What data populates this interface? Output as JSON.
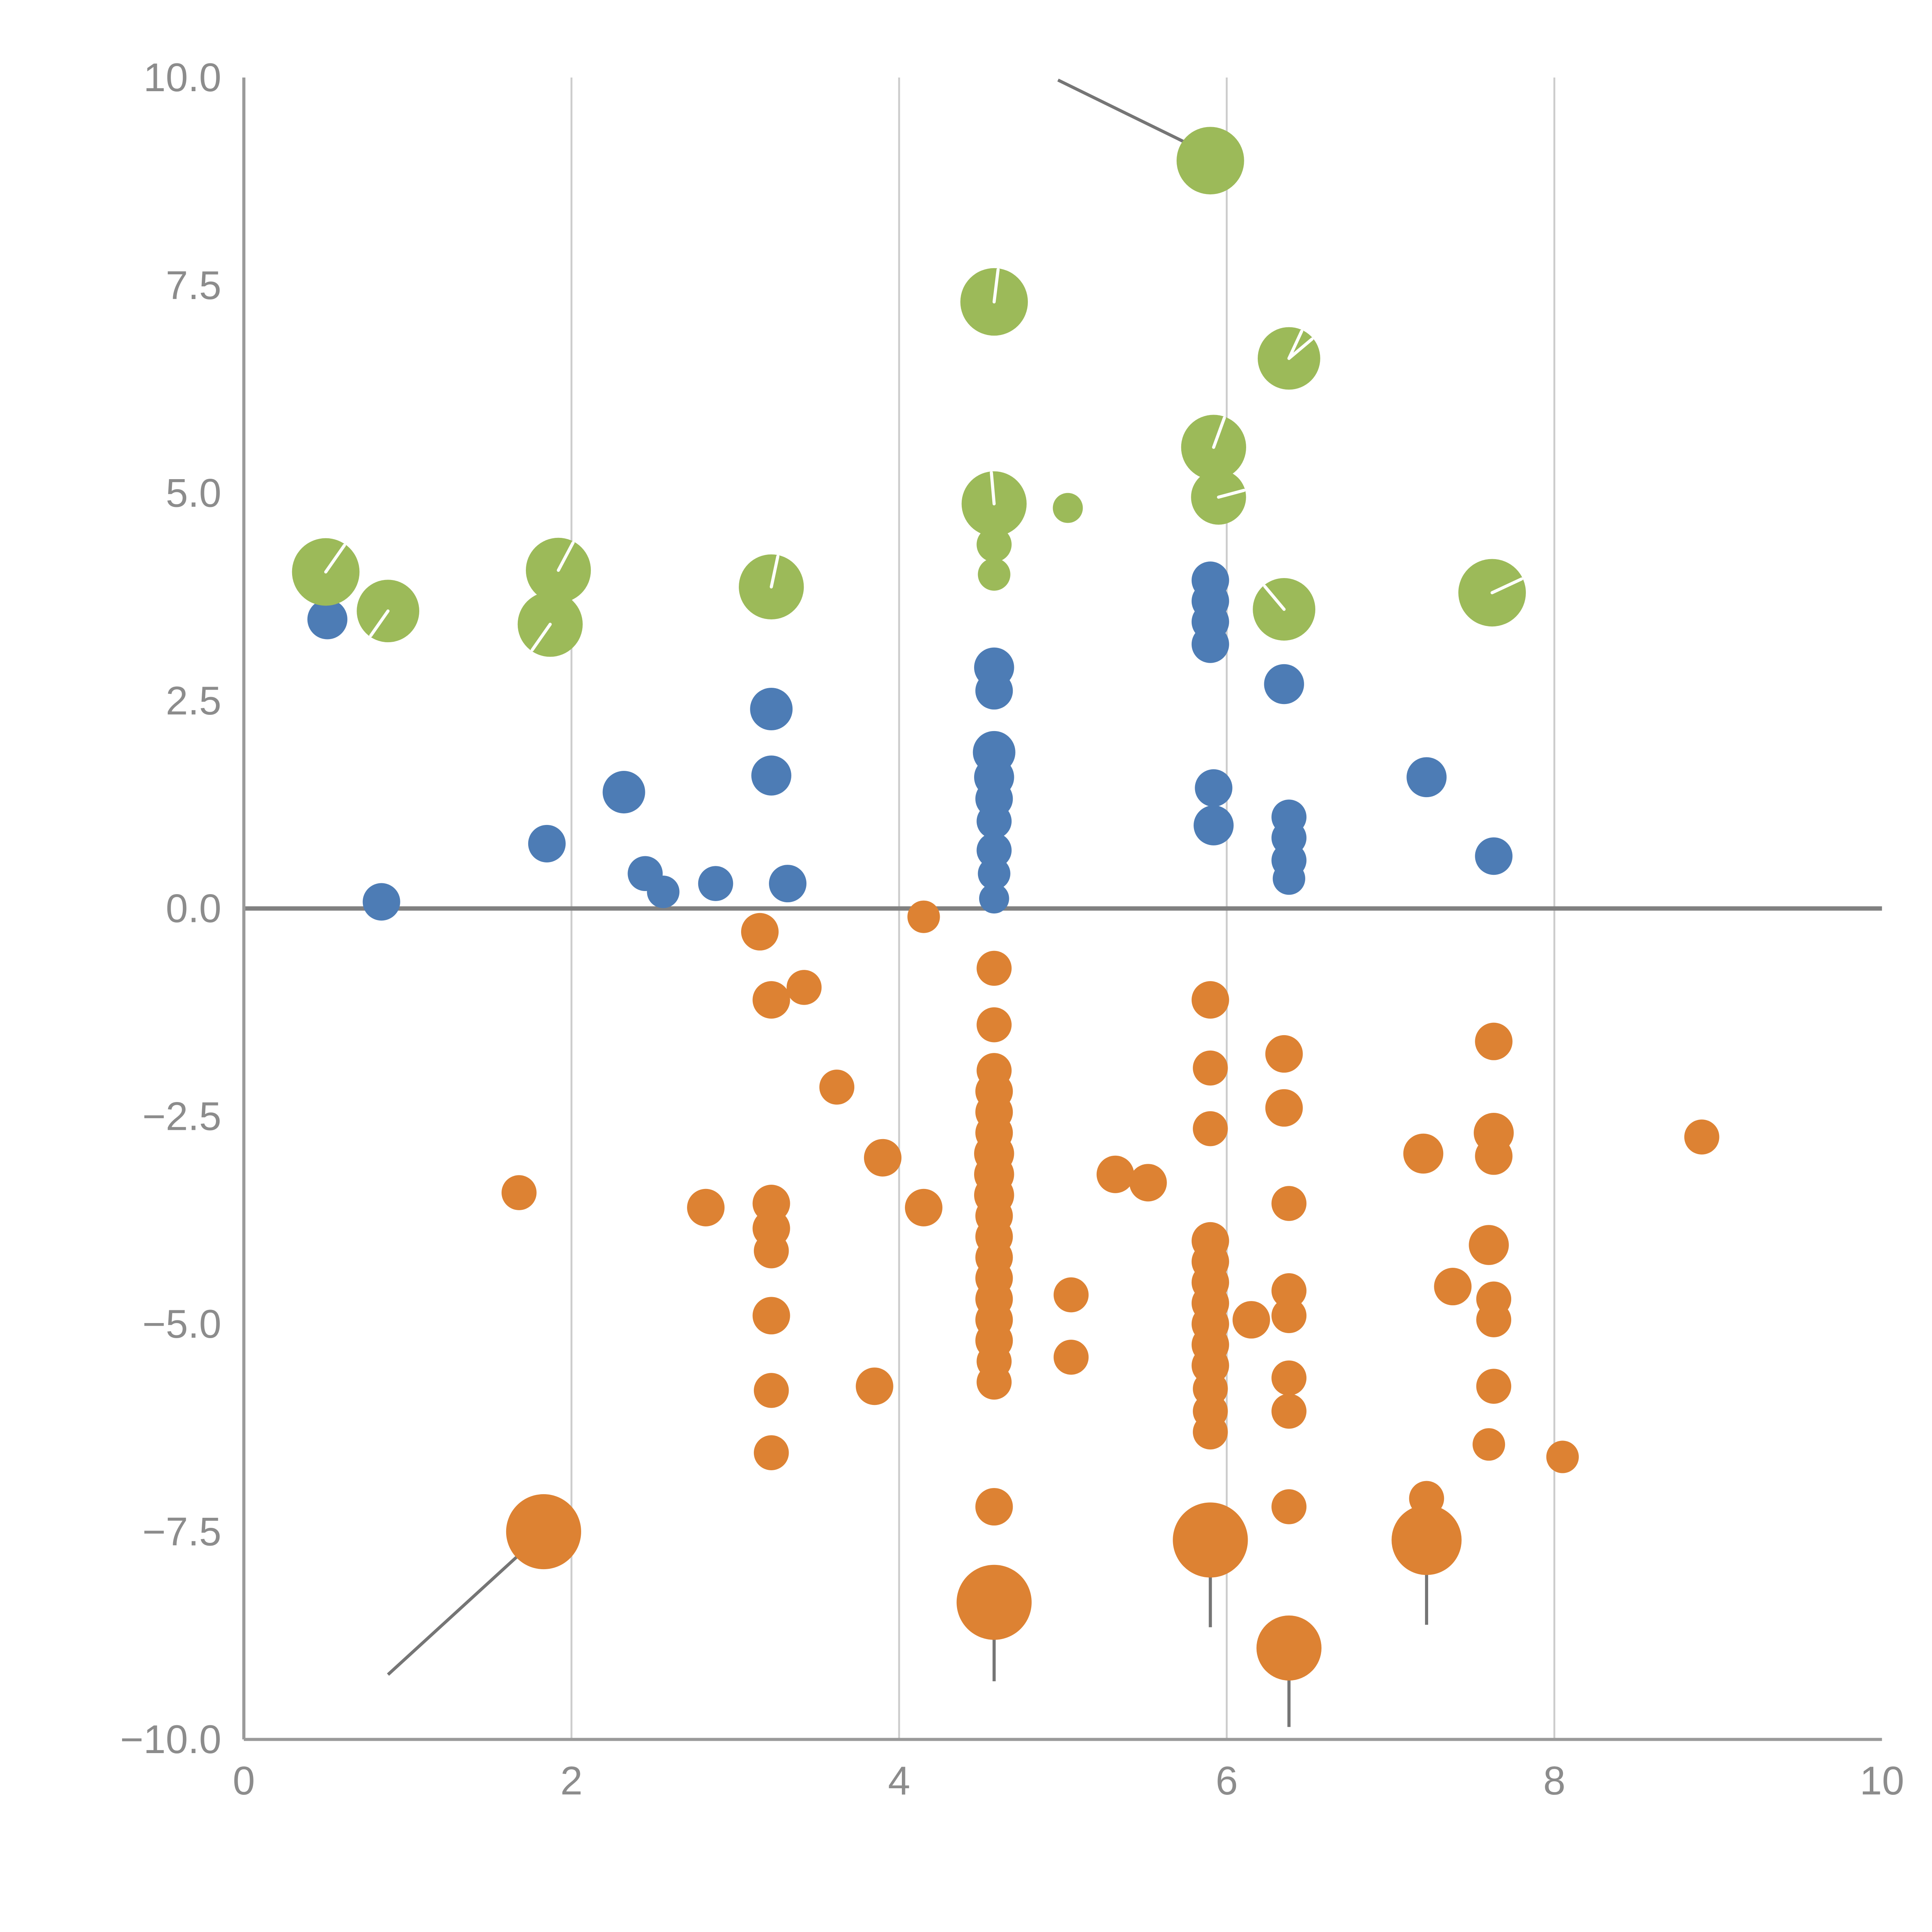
{
  "figure": {
    "background": "#ffffff",
    "axis_color": "#9a9a9a",
    "grid_color": "#cccccc",
    "zero_line_color": "#808080",
    "tick_label_color": "#8c8c8c",
    "annotation_color": "#757575",
    "needle_color": "#ffffff"
  },
  "chart_data": {
    "type": "scatter",
    "title": "",
    "xlabel": "",
    "ylabel": "",
    "xlim": [
      0,
      10
    ],
    "ylim": [
      -10,
      10
    ],
    "grid": "vertical-only",
    "legend_position": "none",
    "x_ticks": [
      {
        "value": 0,
        "label": "0"
      },
      {
        "value": 2,
        "label": "2"
      },
      {
        "value": 4,
        "label": "4"
      },
      {
        "value": 6,
        "label": "6"
      },
      {
        "value": 8,
        "label": "8"
      },
      {
        "value": 10,
        "label": "10"
      }
    ],
    "y_ticks": [
      {
        "value": 10.0,
        "label": "10.0"
      },
      {
        "value": 7.5,
        "label": "7.5"
      },
      {
        "value": 5.0,
        "label": "5.0"
      },
      {
        "value": 2.5,
        "label": "2.5"
      },
      {
        "value": 0.0,
        "label": "0.0"
      },
      {
        "value": -2.5,
        "label": "−2.5"
      },
      {
        "value": -5.0,
        "label": "−5.0"
      },
      {
        "value": -7.5,
        "label": "−7.5"
      },
      {
        "value": -10.0,
        "label": "−10.0"
      }
    ],
    "gridlines_x": [
      2,
      4,
      6,
      8
    ],
    "zero_line_y": 0,
    "series": [
      {
        "name": "blue",
        "color": "#4d7cb5",
        "points": [
          [
            0.51,
            3.48,
            16
          ],
          [
            0.84,
            0.08,
            15
          ],
          [
            1.85,
            0.78,
            15
          ],
          [
            2.32,
            1.4,
            17
          ],
          [
            2.45,
            0.42,
            14
          ],
          [
            2.56,
            0.2,
            13
          ],
          [
            2.88,
            0.3,
            14
          ],
          [
            3.22,
            2.4,
            17
          ],
          [
            3.22,
            1.6,
            16
          ],
          [
            3.32,
            0.3,
            15
          ],
          [
            4.58,
            2.9,
            16
          ],
          [
            4.58,
            2.62,
            15
          ],
          [
            4.58,
            1.88,
            17
          ],
          [
            4.58,
            1.58,
            16
          ],
          [
            4.58,
            1.32,
            15
          ],
          [
            4.58,
            1.05,
            14
          ],
          [
            4.58,
            0.7,
            14
          ],
          [
            4.58,
            0.42,
            13
          ],
          [
            4.58,
            0.12,
            12
          ],
          [
            5.9,
            3.95,
            15
          ],
          [
            5.9,
            3.7,
            15
          ],
          [
            5.9,
            3.45,
            15
          ],
          [
            5.9,
            3.18,
            15
          ],
          [
            5.92,
            1.45,
            15
          ],
          [
            5.92,
            1.0,
            16
          ],
          [
            6.35,
            2.7,
            16
          ],
          [
            6.38,
            1.1,
            14
          ],
          [
            6.38,
            0.85,
            14
          ],
          [
            6.38,
            0.58,
            14
          ],
          [
            6.38,
            0.36,
            13
          ],
          [
            7.22,
            1.58,
            16
          ],
          [
            7.63,
            0.63,
            15
          ]
        ]
      },
      {
        "name": "orange",
        "color": "#dd8233",
        "points": [
          [
            4.15,
            -0.1,
            13
          ],
          [
            3.15,
            -0.28,
            15
          ],
          [
            3.22,
            -1.1,
            15
          ],
          [
            3.42,
            -0.95,
            14
          ],
          [
            4.58,
            -0.72,
            14
          ],
          [
            4.58,
            -1.4,
            14
          ],
          [
            3.62,
            -2.15,
            14
          ],
          [
            3.9,
            -3.0,
            15
          ],
          [
            4.15,
            -3.6,
            15
          ],
          [
            1.68,
            -3.42,
            14
          ],
          [
            2.82,
            -3.6,
            15
          ],
          [
            3.22,
            -3.55,
            15
          ],
          [
            3.22,
            -3.85,
            15
          ],
          [
            3.22,
            -4.12,
            14
          ],
          [
            3.22,
            -4.9,
            15
          ],
          [
            3.22,
            -5.8,
            14
          ],
          [
            3.22,
            -6.55,
            14
          ],
          [
            3.85,
            -5.75,
            15
          ],
          [
            1.83,
            -7.5,
            30
          ],
          [
            4.58,
            -1.95,
            14
          ],
          [
            4.58,
            -2.2,
            15
          ],
          [
            4.58,
            -2.45,
            15
          ],
          [
            4.58,
            -2.7,
            15
          ],
          [
            4.58,
            -2.95,
            16
          ],
          [
            4.58,
            -3.2,
            16
          ],
          [
            4.58,
            -3.45,
            16
          ],
          [
            4.58,
            -3.7,
            15
          ],
          [
            4.58,
            -3.95,
            15
          ],
          [
            4.58,
            -4.2,
            15
          ],
          [
            4.58,
            -4.45,
            15
          ],
          [
            4.58,
            -4.7,
            15
          ],
          [
            4.58,
            -4.95,
            15
          ],
          [
            4.58,
            -5.2,
            15
          ],
          [
            4.58,
            -5.45,
            14
          ],
          [
            4.58,
            -5.7,
            14
          ],
          [
            4.58,
            -7.2,
            15
          ],
          [
            4.58,
            -8.35,
            30
          ],
          [
            5.05,
            -4.65,
            14
          ],
          [
            5.05,
            -5.4,
            14
          ],
          [
            5.32,
            -3.2,
            15
          ],
          [
            5.52,
            -3.3,
            15
          ],
          [
            5.9,
            -1.1,
            15
          ],
          [
            5.9,
            -1.92,
            14
          ],
          [
            5.9,
            -2.65,
            14
          ],
          [
            5.9,
            -4.0,
            15
          ],
          [
            5.9,
            -4.25,
            15
          ],
          [
            5.9,
            -4.5,
            15
          ],
          [
            5.9,
            -4.75,
            15
          ],
          [
            5.9,
            -5.0,
            15
          ],
          [
            5.9,
            -5.25,
            15
          ],
          [
            5.9,
            -5.5,
            15
          ],
          [
            5.9,
            -5.78,
            14
          ],
          [
            5.9,
            -6.05,
            14
          ],
          [
            5.9,
            -6.3,
            14
          ],
          [
            5.9,
            -7.6,
            30
          ],
          [
            6.15,
            -4.95,
            15
          ],
          [
            6.35,
            -1.75,
            15
          ],
          [
            6.35,
            -2.4,
            15
          ],
          [
            6.38,
            -3.55,
            14
          ],
          [
            6.38,
            -4.6,
            14
          ],
          [
            6.38,
            -4.9,
            14
          ],
          [
            6.38,
            -5.65,
            14
          ],
          [
            6.38,
            -6.05,
            14
          ],
          [
            6.38,
            -7.2,
            14
          ],
          [
            6.38,
            -8.9,
            26
          ],
          [
            7.2,
            -2.95,
            16
          ],
          [
            7.38,
            -4.55,
            15
          ],
          [
            7.22,
            -7.1,
            14
          ],
          [
            7.22,
            -7.6,
            28
          ],
          [
            7.63,
            -1.6,
            15
          ],
          [
            7.63,
            -2.7,
            16
          ],
          [
            7.63,
            -2.98,
            15
          ],
          [
            7.6,
            -4.05,
            16
          ],
          [
            7.63,
            -4.7,
            14
          ],
          [
            7.63,
            -4.95,
            14
          ],
          [
            7.63,
            -5.75,
            14
          ],
          [
            7.6,
            -6.45,
            13
          ],
          [
            8.05,
            -6.6,
            13
          ],
          [
            8.9,
            -2.75,
            14
          ]
        ]
      },
      {
        "name": "green",
        "color": "#9cba59",
        "points": [
          [
            0.5,
            4.05,
            27
          ],
          [
            0.88,
            3.58,
            25
          ],
          [
            1.92,
            4.07,
            26
          ],
          [
            1.87,
            3.42,
            26
          ],
          [
            3.22,
            3.87,
            26
          ],
          [
            4.58,
            7.3,
            27
          ],
          [
            4.58,
            4.87,
            26
          ],
          [
            4.58,
            4.38,
            14
          ],
          [
            4.58,
            4.02,
            13
          ],
          [
            5.03,
            4.82,
            12
          ],
          [
            5.9,
            9.0,
            27
          ],
          [
            5.92,
            5.55,
            26
          ],
          [
            5.95,
            4.95,
            22
          ],
          [
            6.38,
            6.62,
            25
          ],
          [
            6.35,
            3.6,
            25
          ],
          [
            7.62,
            3.8,
            27
          ]
        ],
        "needles": [
          [
            0.5,
            4.05,
            55,
            26
          ],
          [
            0.88,
            3.58,
            235,
            24
          ],
          [
            1.92,
            4.07,
            62,
            25
          ],
          [
            1.87,
            3.42,
            235,
            25
          ],
          [
            3.22,
            3.87,
            78,
            25
          ],
          [
            4.58,
            7.3,
            83,
            26
          ],
          [
            4.58,
            4.87,
            95,
            25
          ],
          [
            5.92,
            5.55,
            70,
            25
          ],
          [
            5.95,
            4.95,
            15,
            21
          ],
          [
            6.38,
            6.62,
            40,
            24
          ],
          [
            6.38,
            6.62,
            65,
            24
          ],
          [
            6.35,
            3.6,
            130,
            24
          ],
          [
            7.62,
            3.8,
            25,
            26
          ]
        ]
      }
    ],
    "annotation_lines": [
      {
        "x1": 4.97,
        "y1": 9.97,
        "x2": 5.85,
        "y2": 9.12
      },
      {
        "x1": 0.88,
        "y1": -9.22,
        "x2": 1.79,
        "y2": -7.58
      },
      {
        "x1": 4.58,
        "y1": -8.35,
        "x2": 4.58,
        "y2": -9.3
      },
      {
        "x1": 5.9,
        "y1": -7.6,
        "x2": 5.9,
        "y2": -8.65
      },
      {
        "x1": 6.38,
        "y1": -8.9,
        "x2": 6.38,
        "y2": -9.85
      },
      {
        "x1": 7.22,
        "y1": -7.6,
        "x2": 7.22,
        "y2": -8.62
      }
    ]
  }
}
